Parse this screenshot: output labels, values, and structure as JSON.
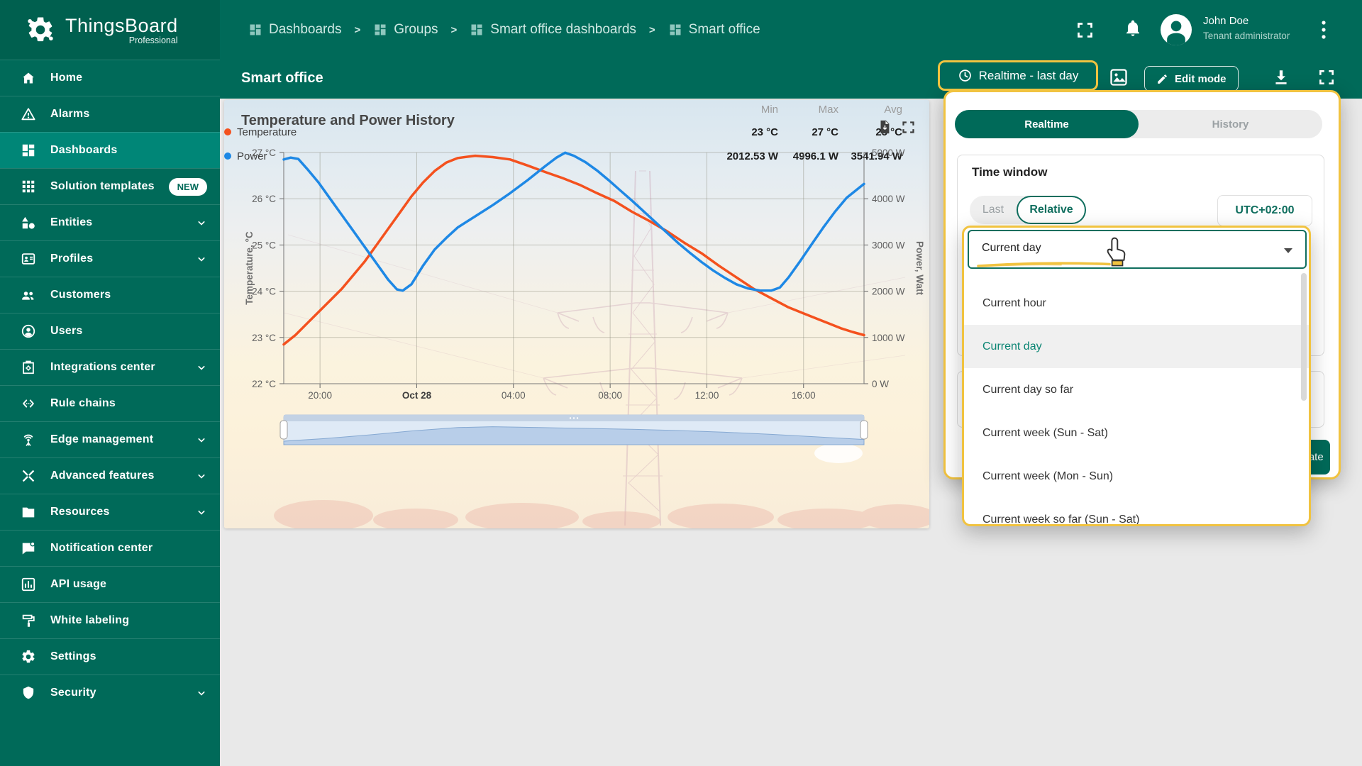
{
  "app": {
    "name": "ThingsBoard",
    "edition": "Professional"
  },
  "colors": {
    "teal": "#006a59",
    "teal_active": "#008677",
    "highlight_yellow": "#f1c340",
    "temperature_orange": "#f4511e",
    "power_blue": "#1e88e5"
  },
  "header": {
    "breadcrumbs": [
      "Dashboards",
      "Groups",
      "Smart office dashboards",
      "Smart office"
    ],
    "separator": ">",
    "user": {
      "name": "John Doe",
      "role": "Tenant administrator"
    }
  },
  "sidebar": {
    "items": [
      {
        "label": "Home",
        "icon": "home-icon"
      },
      {
        "label": "Alarms",
        "icon": "alarms-icon"
      },
      {
        "label": "Dashboards",
        "icon": "dashboards-icon",
        "active": true
      },
      {
        "label": "Solution templates",
        "icon": "solution-templates-icon",
        "badge": "NEW"
      },
      {
        "label": "Entities",
        "icon": "entities-icon",
        "chevron": true
      },
      {
        "label": "Profiles",
        "icon": "profiles-icon",
        "chevron": true
      },
      {
        "label": "Customers",
        "icon": "customers-icon"
      },
      {
        "label": "Users",
        "icon": "users-icon"
      },
      {
        "label": "Integrations center",
        "icon": "integrations-icon",
        "chevron": true
      },
      {
        "label": "Rule chains",
        "icon": "rule-chains-icon"
      },
      {
        "label": "Edge management",
        "icon": "edge-icon",
        "chevron": true
      },
      {
        "label": "Advanced features",
        "icon": "advanced-icon",
        "chevron": true
      },
      {
        "label": "Resources",
        "icon": "resources-icon",
        "chevron": true
      },
      {
        "label": "Notification center",
        "icon": "notification-icon"
      },
      {
        "label": "API usage",
        "icon": "api-usage-icon"
      },
      {
        "label": "White labeling",
        "icon": "white-labeling-icon"
      },
      {
        "label": "Settings",
        "icon": "settings-icon"
      },
      {
        "label": "Security",
        "icon": "security-icon",
        "chevron": true
      }
    ]
  },
  "toolbar": {
    "title": "Smart office",
    "time_button": "Realtime - last day",
    "edit_button": "Edit mode"
  },
  "widget": {
    "title": "Temperature and Power History"
  },
  "chart_data": {
    "type": "line",
    "title": "Temperature and Power History",
    "x_axis": {
      "labels": [
        "20:00",
        "Oct 28",
        "04:00",
        "08:00",
        "12:00",
        "16:00"
      ],
      "fractions": [
        0.0625,
        0.2292,
        0.3958,
        0.5625,
        0.7292,
        0.8958
      ],
      "bold_label": "Oct 28"
    },
    "y_left": {
      "title": "Temperature, °C",
      "min": 22,
      "max": 27,
      "ticks": [
        "27 °C",
        "26 °C",
        "25 °C",
        "24 °C",
        "23 °C",
        "22 °C"
      ]
    },
    "y_right": {
      "title": "Power, Watt",
      "min": 0,
      "max": 5000,
      "ticks": [
        "5000 W",
        "4000 W",
        "3000 W",
        "2000 W",
        "1000 W",
        "0 W"
      ]
    },
    "grid": true,
    "legend_position": "bottom",
    "series": [
      {
        "name": "Temperature",
        "color": "#f4511e",
        "axis": "left",
        "points": [
          [
            0,
            22.85
          ],
          [
            0.02,
            23.05
          ],
          [
            0.04,
            23.3
          ],
          [
            0.06,
            23.55
          ],
          [
            0.08,
            23.8
          ],
          [
            0.1,
            24.05
          ],
          [
            0.12,
            24.35
          ],
          [
            0.14,
            24.65
          ],
          [
            0.16,
            25.0
          ],
          [
            0.18,
            25.35
          ],
          [
            0.2,
            25.7
          ],
          [
            0.22,
            26.05
          ],
          [
            0.24,
            26.35
          ],
          [
            0.26,
            26.6
          ],
          [
            0.28,
            26.78
          ],
          [
            0.3,
            26.88
          ],
          [
            0.33,
            26.93
          ],
          [
            0.36,
            26.9
          ],
          [
            0.39,
            26.85
          ],
          [
            0.42,
            26.72
          ],
          [
            0.45,
            26.58
          ],
          [
            0.48,
            26.45
          ],
          [
            0.51,
            26.3
          ],
          [
            0.54,
            26.12
          ],
          [
            0.57,
            25.95
          ],
          [
            0.6,
            25.72
          ],
          [
            0.63,
            25.52
          ],
          [
            0.66,
            25.3
          ],
          [
            0.69,
            25.05
          ],
          [
            0.72,
            24.82
          ],
          [
            0.75,
            24.55
          ],
          [
            0.78,
            24.3
          ],
          [
            0.81,
            24.05
          ],
          [
            0.84,
            23.85
          ],
          [
            0.87,
            23.65
          ],
          [
            0.9,
            23.5
          ],
          [
            0.93,
            23.35
          ],
          [
            0.96,
            23.2
          ],
          [
            0.98,
            23.12
          ],
          [
            1,
            23.05
          ]
        ]
      },
      {
        "name": "Power",
        "color": "#1e88e5",
        "axis": "right",
        "points": [
          [
            0,
            4850
          ],
          [
            0.012,
            4890
          ],
          [
            0.025,
            4860
          ],
          [
            0.04,
            4650
          ],
          [
            0.06,
            4350
          ],
          [
            0.08,
            4000
          ],
          [
            0.1,
            3650
          ],
          [
            0.12,
            3300
          ],
          [
            0.14,
            2950
          ],
          [
            0.16,
            2600
          ],
          [
            0.18,
            2250
          ],
          [
            0.195,
            2040
          ],
          [
            0.205,
            2013
          ],
          [
            0.22,
            2150
          ],
          [
            0.24,
            2550
          ],
          [
            0.26,
            2900
          ],
          [
            0.28,
            3150
          ],
          [
            0.3,
            3380
          ],
          [
            0.33,
            3620
          ],
          [
            0.36,
            3860
          ],
          [
            0.39,
            4120
          ],
          [
            0.42,
            4400
          ],
          [
            0.45,
            4700
          ],
          [
            0.47,
            4890
          ],
          [
            0.485,
            4996
          ],
          [
            0.5,
            4930
          ],
          [
            0.52,
            4790
          ],
          [
            0.54,
            4610
          ],
          [
            0.56,
            4400
          ],
          [
            0.58,
            4180
          ],
          [
            0.6,
            3960
          ],
          [
            0.62,
            3730
          ],
          [
            0.64,
            3500
          ],
          [
            0.66,
            3270
          ],
          [
            0.68,
            3040
          ],
          [
            0.7,
            2830
          ],
          [
            0.72,
            2630
          ],
          [
            0.74,
            2450
          ],
          [
            0.76,
            2290
          ],
          [
            0.78,
            2150
          ],
          [
            0.8,
            2060
          ],
          [
            0.82,
            2015
          ],
          [
            0.84,
            2013
          ],
          [
            0.855,
            2080
          ],
          [
            0.87,
            2300
          ],
          [
            0.89,
            2650
          ],
          [
            0.91,
            3020
          ],
          [
            0.93,
            3380
          ],
          [
            0.95,
            3720
          ],
          [
            0.97,
            4020
          ],
          [
            1,
            4320
          ]
        ]
      }
    ],
    "navigator": {
      "x": [
        0,
        0.07,
        0.15,
        0.22,
        0.3,
        0.36,
        0.44,
        0.52,
        0.6,
        0.68,
        0.76,
        0.84,
        0.92,
        1
      ],
      "h": [
        0.1,
        0.22,
        0.4,
        0.58,
        0.74,
        0.78,
        0.74,
        0.7,
        0.66,
        0.6,
        0.52,
        0.42,
        0.3,
        0.18
      ]
    },
    "legend": {
      "columns": [
        "Min",
        "Max",
        "Avg"
      ],
      "rows": [
        {
          "label": "Temperature",
          "color": "#f4511e",
          "min": "23 °C",
          "max": "27 °C",
          "avg": "25 °C"
        },
        {
          "label": "Power",
          "color": "#1e88e5",
          "min": "2012.53 W",
          "max": "4996.1 W",
          "avg": "3541.94 W"
        }
      ]
    }
  },
  "panel": {
    "tabs": [
      "Realtime",
      "History"
    ],
    "active_tab": "Realtime",
    "section_title": "Time window",
    "mode_last": "Last",
    "mode_relative": "Relative",
    "active_mode": "Relative",
    "timezone": "UTC+02:00",
    "select_value": "Current day",
    "options": [
      "Current hour",
      "Current day",
      "Current day so far",
      "Current week (Sun - Sat)",
      "Current week (Mon - Sun)",
      "Current week so far (Sun - Sat)"
    ],
    "selected_option": "Current day",
    "update_button": "Update"
  }
}
